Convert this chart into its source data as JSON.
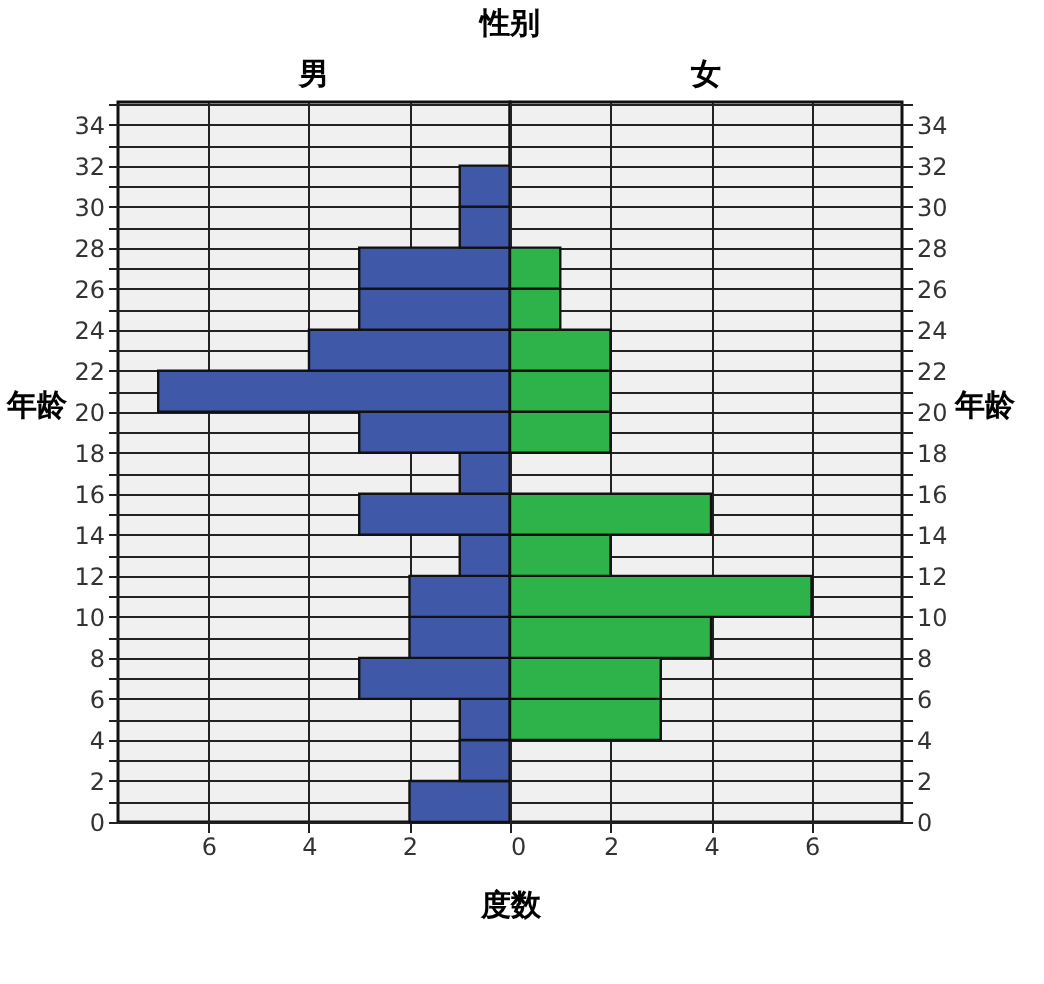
{
  "chart_data": [
    {
      "type": "histogram",
      "orientation": "horizontal",
      "title": "性别",
      "subtitle": "男",
      "xlabel": "度数",
      "ylabel": "年龄",
      "color": "#3f59a8",
      "bins": [
        0,
        2,
        4,
        6,
        8,
        10,
        12,
        14,
        16,
        18,
        20,
        22,
        24,
        26,
        28,
        30,
        32,
        34
      ],
      "values": [
        2,
        1,
        1,
        3,
        2,
        2,
        1,
        3,
        1,
        3,
        7,
        4,
        3,
        3,
        1,
        1,
        0
      ],
      "xlim": [
        7.8,
        0
      ],
      "xticks": [
        6,
        4,
        2
      ],
      "ylim": [
        0,
        35.1
      ],
      "yticks": [
        0,
        {
          "value": 1,
          "label": null
        },
        2,
        {
          "value": 3,
          "label": null
        },
        4,
        {
          "value": 5,
          "label": null
        },
        6,
        {
          "value": 7,
          "label": null
        },
        8,
        {
          "value": 9,
          "label": null
        },
        10,
        {
          "value": 11,
          "label": null
        },
        12,
        {
          "value": 13,
          "label": null
        },
        14,
        {
          "value": 15,
          "label": null
        },
        16,
        {
          "value": 17,
          "label": null
        },
        18,
        {
          "value": 19,
          "label": null
        },
        20,
        {
          "value": 21,
          "label": null
        },
        22,
        {
          "value": 23,
          "label": null
        },
        24,
        {
          "value": 25,
          "label": null
        },
        26,
        {
          "value": 27,
          "label": null
        },
        28,
        {
          "value": 29,
          "label": null
        },
        30,
        {
          "value": 31,
          "label": null
        },
        32,
        {
          "value": 33,
          "label": null
        },
        34,
        {
          "value": 35,
          "label": null
        }
      ],
      "grid": true
    },
    {
      "type": "histogram",
      "orientation": "horizontal",
      "subtitle": "女",
      "ylabel": "年龄",
      "color": "#2db34a",
      "bins": [
        0,
        2,
        4,
        6,
        8,
        10,
        12,
        14,
        16,
        18,
        20,
        22,
        24,
        26,
        28,
        30,
        32,
        34
      ],
      "values": [
        0,
        0,
        3,
        3,
        4,
        6,
        2,
        4,
        0,
        2,
        2,
        2,
        1,
        1,
        0,
        0,
        0
      ],
      "xlim": [
        0,
        7.8
      ],
      "xticks": [
        0,
        2,
        4,
        6
      ],
      "ylim": [
        0,
        35.1
      ],
      "yticks": [
        0,
        {
          "value": 1,
          "label": null
        },
        2,
        {
          "value": 3,
          "label": null
        },
        4,
        {
          "value": 5,
          "label": null
        },
        6,
        {
          "value": 7,
          "label": null
        },
        8,
        {
          "value": 9,
          "label": null
        },
        10,
        {
          "value": 11,
          "label": null
        },
        12,
        {
          "value": 13,
          "label": null
        },
        14,
        {
          "value": 15,
          "label": null
        },
        16,
        {
          "value": 17,
          "label": null
        },
        18,
        {
          "value": 19,
          "label": null
        },
        20,
        {
          "value": 21,
          "label": null
        },
        22,
        {
          "value": 23,
          "label": null
        },
        24,
        {
          "value": 25,
          "label": null
        },
        26,
        {
          "value": 27,
          "label": null
        },
        28,
        {
          "value": 29,
          "label": null
        },
        30,
        {
          "value": 31,
          "label": null
        },
        32,
        {
          "value": 33,
          "label": null
        },
        34,
        {
          "value": 35,
          "label": null
        }
      ],
      "grid": true
    }
  ]
}
